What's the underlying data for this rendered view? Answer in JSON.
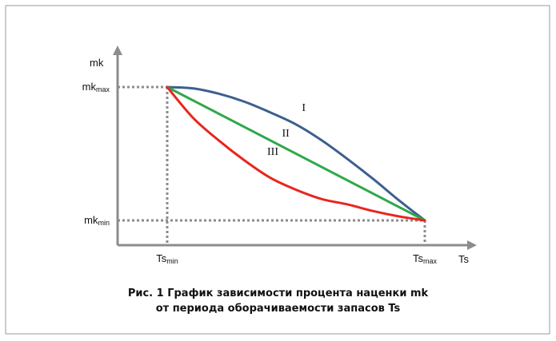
{
  "chart_data": {
    "type": "line",
    "title": "",
    "axes": {
      "y_label": "mk",
      "x_label": "Ts",
      "y_ticks": [
        {
          "main": "mk",
          "sub": "max",
          "value": 1
        },
        {
          "main": "mk",
          "sub": "min",
          "value": 0
        }
      ],
      "x_ticks": [
        {
          "main": "Ts",
          "sub": "min",
          "value": 0
        },
        {
          "main": "Ts",
          "sub": "max",
          "value": 1
        }
      ]
    },
    "xlim": [
      -0.2,
      1.2
    ],
    "ylim": [
      -0.2,
      1.3
    ],
    "grid": false,
    "series": [
      {
        "name": "I",
        "color": "#3d5f8f",
        "x": [
          0,
          0.1,
          0.2,
          0.3,
          0.4,
          0.5,
          0.6,
          0.7,
          0.8,
          0.9,
          1
        ],
        "y": [
          1,
          0.99,
          0.95,
          0.89,
          0.81,
          0.72,
          0.6,
          0.46,
          0.31,
          0.15,
          0
        ]
      },
      {
        "name": "II",
        "color": "#2ea84a",
        "x": [
          0,
          1
        ],
        "y": [
          1,
          0
        ]
      },
      {
        "name": "III",
        "color": "#e8261f",
        "x": [
          0,
          0.1,
          0.2,
          0.3,
          0.4,
          0.5,
          0.6,
          0.7,
          0.8,
          0.9,
          1
        ],
        "y": [
          1,
          0.77,
          0.6,
          0.45,
          0.32,
          0.23,
          0.16,
          0.12,
          0.07,
          0.03,
          0
        ]
      }
    ]
  },
  "caption": {
    "line1": "Рис. 1 График зависимости процента наценки mk",
    "line2": "от периода оборачиваемости запасов Ts"
  },
  "colors": {
    "axis": "#8c8c8c",
    "guide": "#8c8c8c",
    "frame": "#9a9a9a"
  }
}
